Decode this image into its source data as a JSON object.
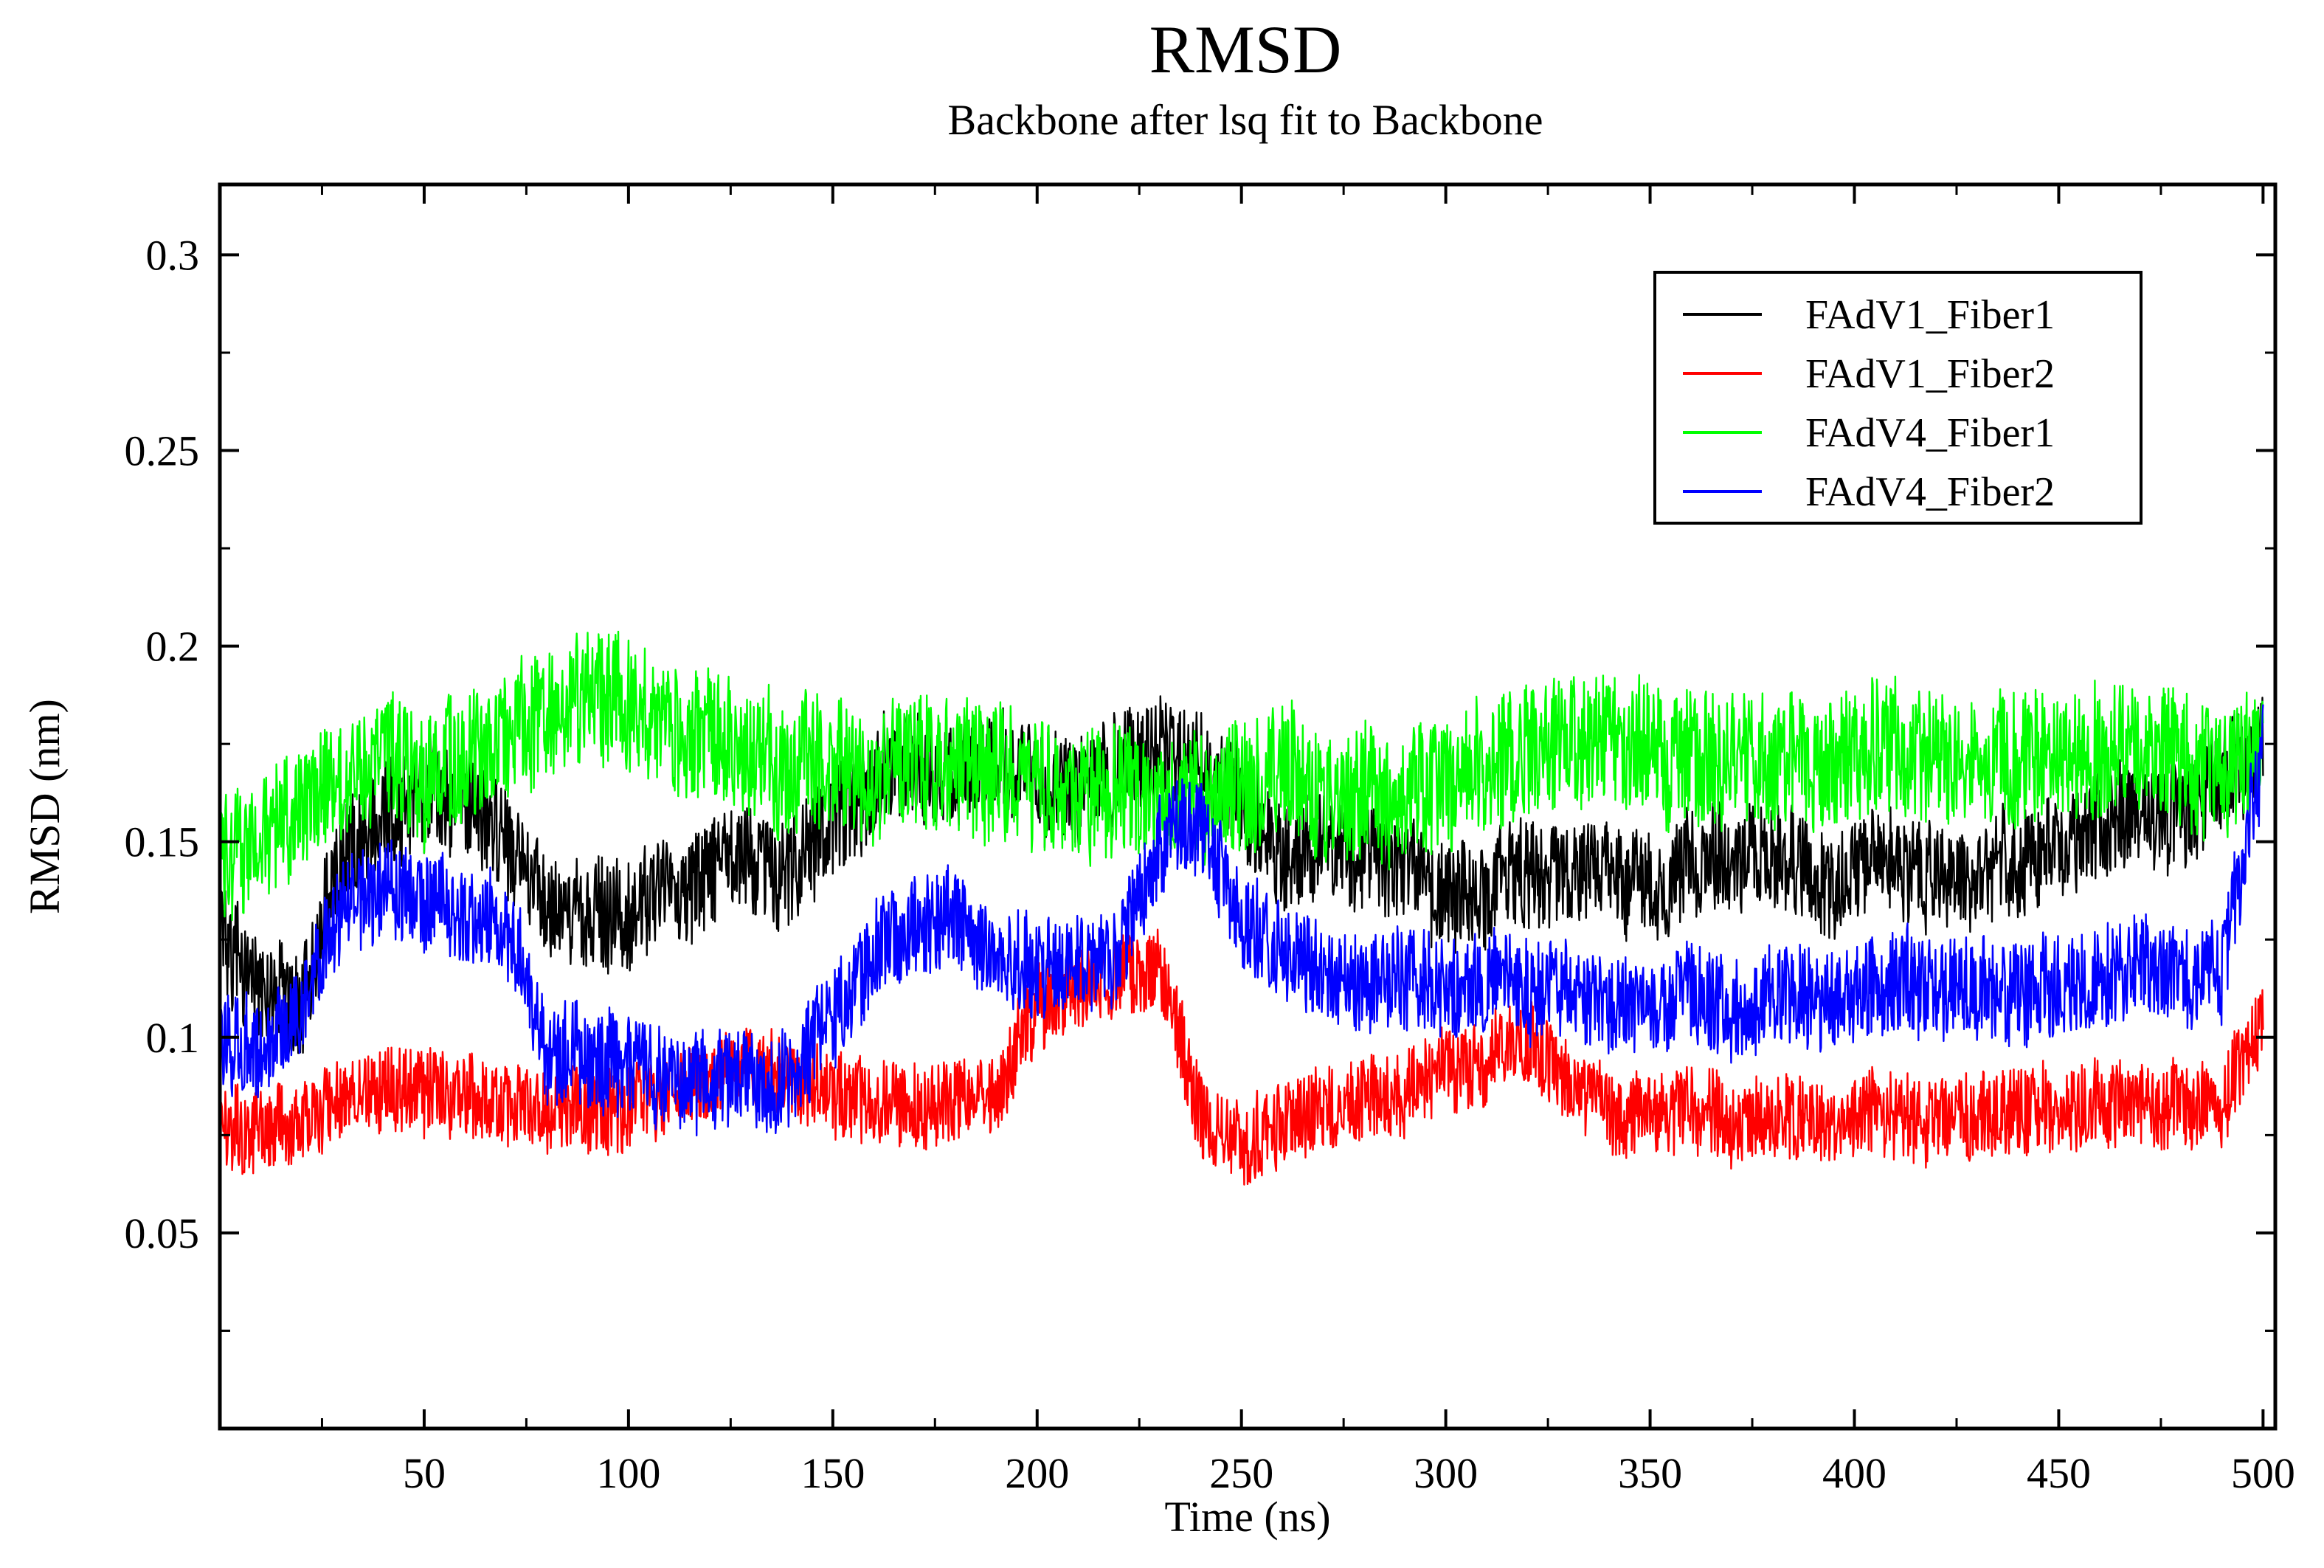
{
  "chart_data": {
    "type": "line",
    "title": "RMSD",
    "subtitle": "Backbone after lsq fit to Backbone",
    "xlabel": "Time (ns)",
    "ylabel": "RMSD (nm)",
    "xlim": [
      0,
      503
    ],
    "ylim": [
      0,
      0.318
    ],
    "xticks": [
      50,
      100,
      150,
      200,
      250,
      300,
      350,
      400,
      450,
      500
    ],
    "xtick_labels": [
      "50",
      "100",
      "150",
      "200",
      "250",
      "300",
      "350",
      "400",
      "450",
      "500"
    ],
    "yticks": [
      0.05,
      0.1,
      0.15,
      0.2,
      0.25,
      0.3
    ],
    "ytick_labels": [
      "0.05",
      "0.1",
      "0.15",
      "0.2",
      "0.25",
      "0.3"
    ],
    "grid": false,
    "legend_position": "top-right",
    "series": [
      {
        "name": "FAdV1_Fiber1",
        "color": "#000000",
        "noise": 0.014,
        "x": [
          0,
          10,
          20,
          30,
          40,
          50,
          60,
          70,
          80,
          90,
          100,
          110,
          120,
          130,
          140,
          150,
          160,
          170,
          180,
          190,
          200,
          210,
          220,
          230,
          240,
          250,
          260,
          270,
          280,
          290,
          300,
          310,
          320,
          330,
          340,
          350,
          360,
          370,
          380,
          390,
          400,
          410,
          420,
          430,
          440,
          450,
          460,
          470,
          480,
          490,
          500
        ],
        "values": [
          0.125,
          0.112,
          0.108,
          0.145,
          0.158,
          0.162,
          0.16,
          0.152,
          0.133,
          0.13,
          0.132,
          0.135,
          0.14,
          0.145,
          0.142,
          0.155,
          0.165,
          0.17,
          0.168,
          0.172,
          0.165,
          0.162,
          0.17,
          0.175,
          0.168,
          0.16,
          0.145,
          0.15,
          0.145,
          0.142,
          0.135,
          0.138,
          0.14,
          0.142,
          0.14,
          0.138,
          0.142,
          0.145,
          0.148,
          0.14,
          0.142,
          0.145,
          0.14,
          0.142,
          0.145,
          0.15,
          0.155,
          0.158,
          0.155,
          0.165,
          0.175
        ]
      },
      {
        "name": "FAdV1_Fiber2",
        "color": "#ff0000",
        "noise": 0.011,
        "x": [
          0,
          10,
          20,
          30,
          40,
          50,
          60,
          70,
          80,
          90,
          100,
          110,
          120,
          130,
          140,
          150,
          160,
          170,
          180,
          190,
          200,
          210,
          220,
          230,
          240,
          250,
          260,
          270,
          280,
          290,
          300,
          310,
          320,
          330,
          340,
          350,
          360,
          370,
          380,
          390,
          400,
          410,
          420,
          430,
          440,
          450,
          460,
          470,
          480,
          490,
          500
        ],
        "values": [
          0.075,
          0.078,
          0.08,
          0.082,
          0.088,
          0.085,
          0.085,
          0.083,
          0.08,
          0.08,
          0.082,
          0.085,
          0.088,
          0.092,
          0.088,
          0.085,
          0.083,
          0.082,
          0.084,
          0.085,
          0.108,
          0.112,
          0.115,
          0.118,
          0.08,
          0.072,
          0.078,
          0.082,
          0.085,
          0.085,
          0.092,
          0.095,
          0.098,
          0.088,
          0.08,
          0.082,
          0.08,
          0.08,
          0.08,
          0.078,
          0.08,
          0.08,
          0.078,
          0.08,
          0.082,
          0.082,
          0.083,
          0.082,
          0.082,
          0.082,
          0.105
        ]
      },
      {
        "name": "FAdV4_Fiber1",
        "color": "#00ff00",
        "noise": 0.017,
        "x": [
          0,
          10,
          20,
          30,
          40,
          50,
          60,
          70,
          80,
          90,
          100,
          110,
          120,
          130,
          140,
          150,
          160,
          170,
          180,
          190,
          200,
          210,
          220,
          230,
          240,
          250,
          260,
          270,
          280,
          290,
          300,
          310,
          320,
          330,
          340,
          350,
          360,
          370,
          380,
          390,
          400,
          410,
          420,
          430,
          440,
          450,
          460,
          470,
          480,
          490,
          500
        ],
        "values": [
          0.145,
          0.15,
          0.16,
          0.165,
          0.17,
          0.168,
          0.172,
          0.178,
          0.182,
          0.188,
          0.185,
          0.178,
          0.175,
          0.172,
          0.168,
          0.17,
          0.168,
          0.17,
          0.168,
          0.168,
          0.165,
          0.162,
          0.165,
          0.16,
          0.16,
          0.162,
          0.165,
          0.16,
          0.162,
          0.158,
          0.165,
          0.17,
          0.172,
          0.175,
          0.178,
          0.175,
          0.17,
          0.175,
          0.172,
          0.17,
          0.172,
          0.175,
          0.172,
          0.17,
          0.172,
          0.172,
          0.175,
          0.175,
          0.17,
          0.168,
          0.175
        ]
      },
      {
        "name": "FAdV4_Fiber2",
        "color": "#0000ff",
        "noise": 0.013,
        "x": [
          0,
          10,
          20,
          30,
          40,
          50,
          60,
          70,
          80,
          90,
          100,
          110,
          120,
          130,
          140,
          150,
          160,
          170,
          180,
          190,
          200,
          210,
          220,
          230,
          240,
          250,
          260,
          270,
          280,
          290,
          300,
          310,
          320,
          330,
          340,
          350,
          360,
          370,
          380,
          390,
          400,
          410,
          420,
          430,
          440,
          450,
          460,
          470,
          480,
          490,
          500
        ],
        "values": [
          0.1,
          0.098,
          0.11,
          0.132,
          0.138,
          0.135,
          0.132,
          0.13,
          0.095,
          0.092,
          0.092,
          0.088,
          0.088,
          0.09,
          0.088,
          0.105,
          0.122,
          0.128,
          0.13,
          0.12,
          0.118,
          0.118,
          0.12,
          0.15,
          0.155,
          0.13,
          0.122,
          0.118,
          0.112,
          0.115,
          0.112,
          0.115,
          0.112,
          0.11,
          0.108,
          0.11,
          0.11,
          0.108,
          0.11,
          0.112,
          0.11,
          0.115,
          0.112,
          0.112,
          0.112,
          0.115,
          0.115,
          0.118,
          0.115,
          0.115,
          0.175
        ]
      }
    ]
  }
}
